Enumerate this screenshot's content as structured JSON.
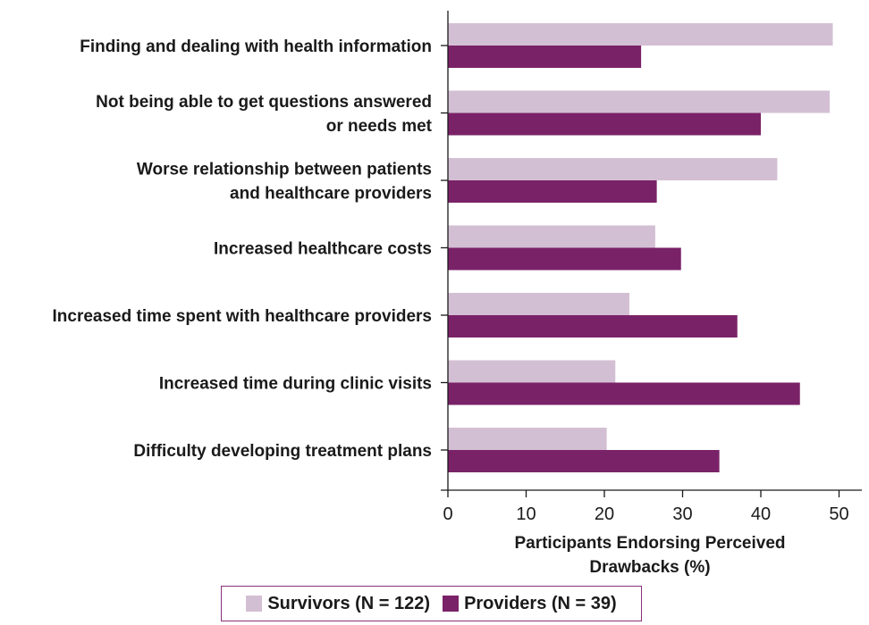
{
  "chart_data": {
    "type": "bar",
    "orientation": "horizontal",
    "categories": [
      [
        "Finding and dealing with health information"
      ],
      [
        "Not being able to get questions answered",
        "or needs met"
      ],
      [
        "Worse relationship between patients",
        "and healthcare providers"
      ],
      [
        "Increased healthcare costs"
      ],
      [
        "Increased time spent with healthcare providers"
      ],
      [
        "Increased time during clinic visits"
      ],
      [
        "Difficulty developing treatment plans"
      ]
    ],
    "series": [
      {
        "name": "Survivors",
        "legend_label": "Survivors  (N = 122)",
        "color": "#d3bfd3",
        "values": [
          49.2,
          48.8,
          42.1,
          26.5,
          23.2,
          21.4,
          20.3
        ]
      },
      {
        "name": "Providers",
        "legend_label": "Providers (N = 39)",
        "color": "#7a2268",
        "values": [
          24.7,
          40,
          26.7,
          29.8,
          37,
          45,
          34.7
        ]
      }
    ],
    "xlabel": [
      "Participants Endorsing Perceived",
      "Drawbacks (%)"
    ],
    "xlim": [
      0,
      52
    ],
    "xticks": [
      0,
      10,
      20,
      30,
      40,
      50
    ],
    "legend_position": "bottom",
    "grid": false
  }
}
